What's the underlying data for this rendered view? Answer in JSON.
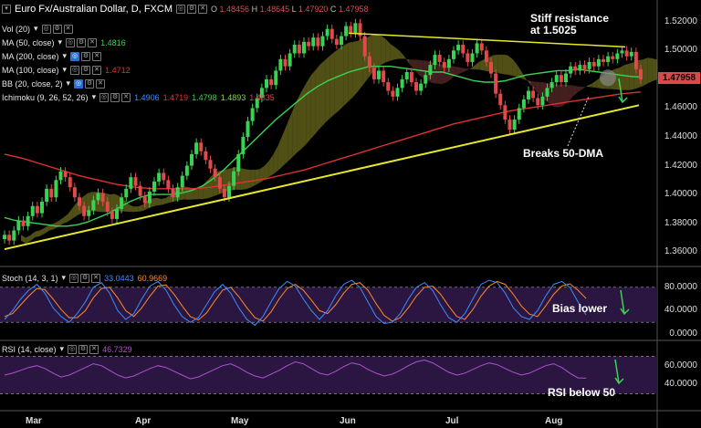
{
  "header": {
    "title": "Euro Fx/Australian Dollar, D, FXCM",
    "ohlc": {
      "o_label": "O",
      "o": "1.48456",
      "h_label": "H",
      "h": "1.48645",
      "l_label": "L",
      "l": "1.47920",
      "c_label": "C",
      "c": "1.47958"
    }
  },
  "indicators": [
    {
      "label": "Vol (20)",
      "value": "",
      "color": "#ffffff"
    },
    {
      "label": "MA (50, close)",
      "value": "1.4816",
      "color": "#39d353"
    },
    {
      "label": "MA (200, close)",
      "value": "",
      "color": "#ffffff"
    },
    {
      "label": "MA (100, close)",
      "value": "1.4712",
      "color": "#e03030"
    },
    {
      "label": "BB (20, close, 2)",
      "value": "",
      "color": "#ffffff"
    },
    {
      "label": "Ichimoku (9, 26, 52, 26)",
      "values": [
        "1.4906",
        "1.4719",
        "1.4798",
        "1.4893",
        "1.4835"
      ],
      "colors": [
        "#3b8cff",
        "#e03030",
        "#39d353",
        "#8ccf55",
        "#d24e4e"
      ]
    }
  ],
  "stoch": {
    "label": "Stoch (14, 3, 1)",
    "k": "33.0443",
    "d": "60.9669",
    "k_color": "#3b8cff",
    "d_color": "#ff8a2a"
  },
  "rsi": {
    "label": "RSI (14, close)",
    "value": "46.7329",
    "color": "#b050d0"
  },
  "annotations": {
    "resistance": "Stiff resistance\nat 1.5025",
    "breaks": "Breaks 50-DMA",
    "bias": "Bias lower",
    "rsi_note": "RSI below 50"
  },
  "last_price": "1.47958",
  "colors": {
    "up": "#39d353",
    "down": "#e04a4a",
    "trend": "#e8e82a",
    "ma50": "#39d353",
    "ma100": "#e03030",
    "cloud": "#6b6b1e",
    "cloud_bear": "#5a2a2a",
    "osc_bg": "#2a1640"
  },
  "chart_data": {
    "type": "candlestick",
    "x_labels": [
      "Mar",
      "Apr",
      "May",
      "Jun",
      "Jul",
      "Aug"
    ],
    "price_axis": {
      "ylim": [
        1.35,
        1.53
      ],
      "ticks": [
        "1.52000",
        "1.50000",
        "1.48000",
        "1.46000",
        "1.44000",
        "1.42000",
        "1.40000",
        "1.38000",
        "1.36000"
      ]
    },
    "stoch_axis": {
      "ylim": [
        0,
        100
      ],
      "ticks": [
        "80.0000",
        "40.0000",
        "0.0000"
      ],
      "levels": [
        80,
        20
      ]
    },
    "rsi_axis": {
      "ylim": [
        20,
        80
      ],
      "ticks": [
        "60.0000",
        "40.0000"
      ],
      "levels": [
        70,
        30
      ]
    },
    "close_series": [
      1.372,
      1.368,
      1.375,
      1.382,
      1.378,
      1.385,
      1.392,
      1.387,
      1.395,
      1.404,
      1.398,
      1.41,
      1.416,
      1.412,
      1.405,
      1.398,
      1.392,
      1.385,
      1.389,
      1.396,
      1.401,
      1.395,
      1.388,
      1.383,
      1.39,
      1.398,
      1.404,
      1.412,
      1.406,
      1.399,
      1.394,
      1.402,
      1.409,
      1.415,
      1.41,
      1.404,
      1.398,
      1.405,
      1.413,
      1.42,
      1.428,
      1.436,
      1.43,
      1.424,
      1.418,
      1.412,
      1.404,
      1.398,
      1.406,
      1.416,
      1.428,
      1.44,
      1.451,
      1.46,
      1.467,
      1.474,
      1.48,
      1.476,
      1.486,
      1.494,
      1.489,
      1.498,
      1.504,
      1.498,
      1.506,
      1.503,
      1.509,
      1.503,
      1.51,
      1.515,
      1.508,
      1.504,
      1.51,
      1.517,
      1.512,
      1.519,
      1.51,
      1.496,
      1.488,
      1.48,
      1.486,
      1.478,
      1.472,
      1.468,
      1.474,
      1.48,
      1.485,
      1.478,
      1.472,
      1.477,
      1.483,
      1.49,
      1.497,
      1.492,
      1.488,
      1.494,
      1.5,
      1.504,
      1.498,
      1.492,
      1.498,
      1.505,
      1.5,
      1.492,
      1.484,
      1.47,
      1.462,
      1.452,
      1.445,
      1.452,
      1.46,
      1.466,
      1.472,
      1.467,
      1.462,
      1.468,
      1.474,
      1.478,
      1.483,
      1.478,
      1.484,
      1.489,
      1.486,
      1.49,
      1.487,
      1.492,
      1.489,
      1.494,
      1.492,
      1.496,
      1.494,
      1.498,
      1.5,
      1.496,
      1.499,
      1.487,
      1.48
    ],
    "ma50": [
      1.384,
      1.382,
      1.381,
      1.38,
      1.379,
      1.378,
      1.378,
      1.379,
      1.381,
      1.384,
      1.387,
      1.391,
      1.395,
      1.398,
      1.4,
      1.4,
      1.4,
      1.401,
      1.403,
      1.406,
      1.411,
      1.417,
      1.424,
      1.431,
      1.438,
      1.445,
      1.452,
      1.458,
      1.464,
      1.47,
      1.475,
      1.479,
      1.482,
      1.485,
      1.487,
      1.489,
      1.489,
      1.489,
      1.488,
      1.487,
      1.486,
      1.485,
      1.485,
      1.483,
      1.481,
      1.479,
      1.478,
      1.478,
      1.479,
      1.481,
      1.483,
      1.484,
      1.485,
      1.486,
      1.486,
      1.487,
      1.486,
      1.485,
      1.484,
      1.483,
      1.482,
      1.4816
    ],
    "ma100": [
      1.428,
      1.425,
      1.421,
      1.417,
      1.413,
      1.41,
      1.407,
      1.405,
      1.404,
      1.404,
      1.404,
      1.405,
      1.407,
      1.409,
      1.411,
      1.414,
      1.417,
      1.421,
      1.425,
      1.429,
      1.433,
      1.437,
      1.441,
      1.445,
      1.449,
      1.452,
      1.455,
      1.458,
      1.46,
      1.462,
      1.464,
      1.466,
      1.468,
      1.47,
      1.4712
    ],
    "stoch_k": [
      25,
      40,
      60,
      75,
      85,
      70,
      45,
      30,
      20,
      35,
      55,
      80,
      88,
      70,
      40,
      25,
      35,
      60,
      82,
      90,
      75,
      50,
      30,
      20,
      28,
      50,
      72,
      85,
      70,
      45,
      25,
      15,
      30,
      55,
      78,
      90,
      82,
      60,
      40,
      25,
      40,
      65,
      85,
      92,
      80,
      55,
      30,
      18,
      20,
      35,
      60,
      80,
      88,
      75,
      50,
      28,
      20,
      35,
      60,
      85,
      92,
      88,
      70,
      45,
      30,
      25,
      40,
      65,
      85,
      90,
      80,
      55,
      33
    ],
    "stoch_d": [
      30,
      35,
      50,
      65,
      78,
      76,
      60,
      42,
      28,
      28,
      40,
      62,
      78,
      80,
      62,
      40,
      30,
      45,
      65,
      82,
      84,
      68,
      48,
      30,
      24,
      36,
      56,
      75,
      80,
      64,
      45,
      28,
      22,
      38,
      60,
      78,
      85,
      75,
      58,
      40,
      35,
      50,
      70,
      85,
      88,
      75,
      52,
      32,
      22,
      28,
      45,
      65,
      80,
      82,
      68,
      48,
      30,
      25,
      42,
      65,
      82,
      90,
      85,
      68,
      48,
      34,
      30,
      48,
      68,
      82,
      86,
      75,
      60.97
    ],
    "rsi": [
      50,
      52,
      55,
      58,
      60,
      57,
      52,
      48,
      50,
      54,
      58,
      62,
      60,
      55,
      50,
      47,
      49,
      53,
      57,
      60,
      58,
      54,
      50,
      46,
      48,
      52,
      56,
      60,
      62,
      58,
      53,
      49,
      47,
      51,
      55,
      60,
      64,
      62,
      57,
      52,
      50,
      54,
      59,
      63,
      61,
      56,
      52,
      49,
      51,
      55,
      60,
      64,
      66,
      63,
      58,
      53,
      50,
      52,
      56,
      60,
      63,
      61,
      57,
      53,
      50,
      52,
      56,
      60,
      62,
      58,
      52,
      47,
      46.73
    ]
  }
}
